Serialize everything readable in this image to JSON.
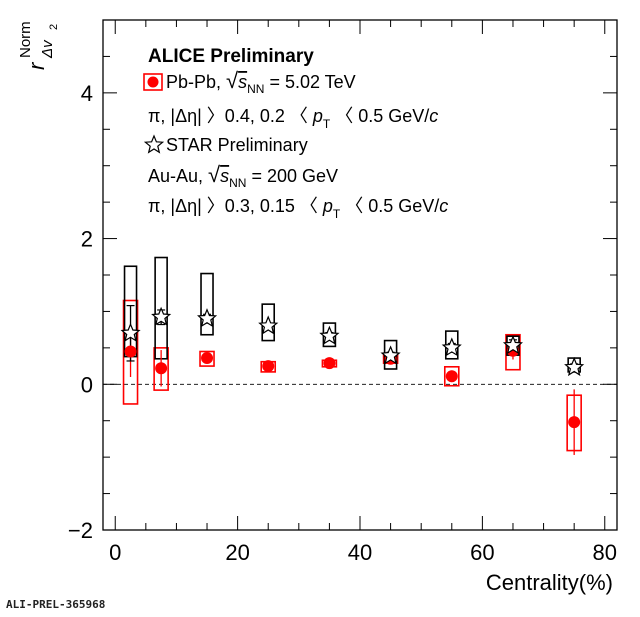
{
  "chart_data": {
    "type": "scatter",
    "title": "ALICE Preliminary",
    "xlabel": "Centrality(%)",
    "ylabel": "r",
    "ylabel_sup": "Norm",
    "ylabel_sub": "Δv",
    "ylabel_sub2": "2",
    "xlim": [
      -2,
      82
    ],
    "ylim": [
      -2,
      5
    ],
    "x_ticks": [
      0,
      20,
      40,
      60,
      80
    ],
    "y_ticks": [
      -2,
      0,
      2,
      4
    ],
    "x_tick_labels": [
      "0",
      "20",
      "40",
      "60",
      "80"
    ],
    "y_tick_labels": [
      "−2",
      "0",
      "2",
      "4"
    ],
    "reference_line_y": 0,
    "series": [
      {
        "name": "Pb-Pb",
        "color": "#ff0000",
        "marker": "filled-circle",
        "x": [
          2.5,
          7.5,
          15,
          25,
          35,
          45,
          55,
          65,
          75
        ],
        "y": [
          0.45,
          0.22,
          0.36,
          0.25,
          0.29,
          0.35,
          0.11,
          0.46,
          -0.52
        ],
        "stat_err": [
          0.35,
          0.25,
          0.0,
          0.0,
          0.0,
          0.0,
          0.08,
          0.12,
          0.45
        ],
        "sys_low": [
          -0.27,
          -0.08,
          0.25,
          0.17,
          0.24,
          0.29,
          -0.02,
          0.2,
          -0.91
        ],
        "sys_high": [
          1.15,
          0.5,
          0.45,
          0.31,
          0.33,
          0.4,
          0.24,
          0.68,
          -0.15
        ]
      },
      {
        "name": "STAR Preliminary",
        "color": "#000000",
        "marker": "open-star",
        "x": [
          2.5,
          7.5,
          15,
          25,
          35,
          45,
          55,
          65,
          75
        ],
        "y": [
          0.7,
          0.92,
          0.9,
          0.8,
          0.66,
          0.39,
          0.5,
          0.53,
          0.23
        ],
        "stat_err": [
          0.38,
          0.1,
          0.06,
          0.04,
          0.05,
          0.05,
          0.06,
          0.08,
          0.05
        ],
        "sys_low": [
          0.38,
          0.35,
          0.68,
          0.6,
          0.52,
          0.21,
          0.35,
          0.4,
          0.17
        ],
        "sys_high": [
          1.62,
          1.74,
          1.52,
          1.1,
          0.84,
          0.6,
          0.73,
          0.66,
          0.36
        ]
      }
    ],
    "legend": {
      "title": "ALICE Preliminary",
      "entries": [
        {
          "label_pre": "Pb-Pb, ",
          "sqrt_s": "s",
          "sqrt_sub": "NN",
          "label_post": " = 5.02 TeV"
        },
        {
          "cut_line": "π, |Δη| 〉0.4, 0.2 〈 ",
          "pt": "p",
          "pt_sub": "T",
          "cut_tail": " 〈 0.5 GeV/",
          "c": "c"
        },
        {
          "label": "STAR Preliminary"
        },
        {
          "label_pre": "Au-Au, ",
          "sqrt_s": "s",
          "sqrt_sub": "NN",
          "label_post": " = 200 GeV"
        },
        {
          "cut_line": "π, |Δη| 〉0.3, 0.15 〈 ",
          "pt": "p",
          "pt_sub": "T",
          "cut_tail": " 〈 0.5 GeV/",
          "c": "c"
        }
      ]
    }
  },
  "footer": "ALI-PREL-365968"
}
